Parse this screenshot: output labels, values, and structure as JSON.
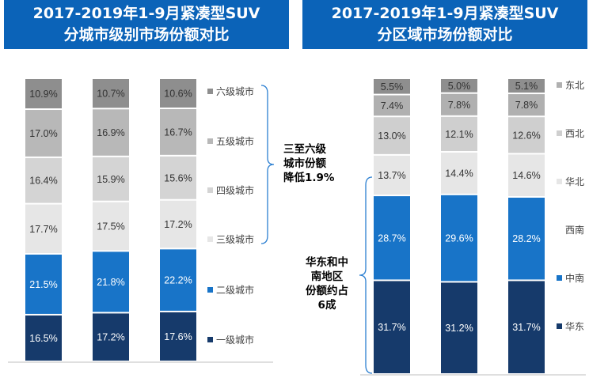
{
  "header_left": {
    "line1": "2017-2019年1-9月紧凑型SUV",
    "line2": "分城市级别市场份额对比"
  },
  "header_right": {
    "line1": "2017-2019年1-9月紧凑型SUV",
    "line2": "分区域市场份额对比"
  },
  "note_left": [
    "三至六级",
    "城市份额",
    "降低1.9%"
  ],
  "note_right": [
    "华东和中",
    "南地区",
    "份额约占",
    "6成"
  ],
  "chart_data": [
    {
      "type": "bar",
      "stacked": true,
      "title": "",
      "categories": [
        "",
        "",
        ""
      ],
      "series": [
        {
          "name": "一级城市",
          "color": "#163a6b",
          "values": [
            16.5,
            17.2,
            17.6
          ]
        },
        {
          "name": "二级城市",
          "color": "#1874c8",
          "values": [
            21.5,
            21.8,
            22.2
          ]
        },
        {
          "name": "三级城市",
          "color": "#e6e6e6",
          "values": [
            17.7,
            17.5,
            17.2
          ]
        },
        {
          "name": "四级城市",
          "color": "#d4d4d4",
          "values": [
            16.4,
            15.9,
            15.6
          ]
        },
        {
          "name": "五级城市",
          "color": "#b8b8b8",
          "values": [
            17.0,
            16.9,
            16.7
          ]
        },
        {
          "name": "六级城市",
          "color": "#8e8e8e",
          "values": [
            10.9,
            10.7,
            10.6
          ]
        }
      ],
      "value_suffix": "%",
      "legend_position": "right"
    },
    {
      "type": "bar",
      "stacked": true,
      "title": "",
      "categories": [
        "",
        "",
        ""
      ],
      "series": [
        {
          "name": "华东",
          "color": "#163a6b",
          "values": [
            31.7,
            31.2,
            31.7
          ]
        },
        {
          "name": "中南",
          "color": "#1874c8",
          "values": [
            28.7,
            29.6,
            28.2
          ]
        },
        {
          "name": "西南",
          "color": "#ffffff",
          "values": [
            0,
            0,
            0
          ]
        },
        {
          "name": "华北",
          "color": "#e6e6e6",
          "values": [
            13.7,
            14.4,
            14.6
          ]
        },
        {
          "name": "西北",
          "color": "#cfcfcf",
          "values": [
            13.0,
            12.1,
            12.6
          ]
        },
        {
          "name": "东北",
          "color": "#b0b0b0",
          "values": [
            7.4,
            7.8,
            7.8
          ]
        },
        {
          "name": "",
          "color": "#8e8e8e",
          "values": [
            5.5,
            5.0,
            5.1
          ]
        }
      ],
      "value_suffix": "%",
      "legend_position": "right"
    }
  ]
}
